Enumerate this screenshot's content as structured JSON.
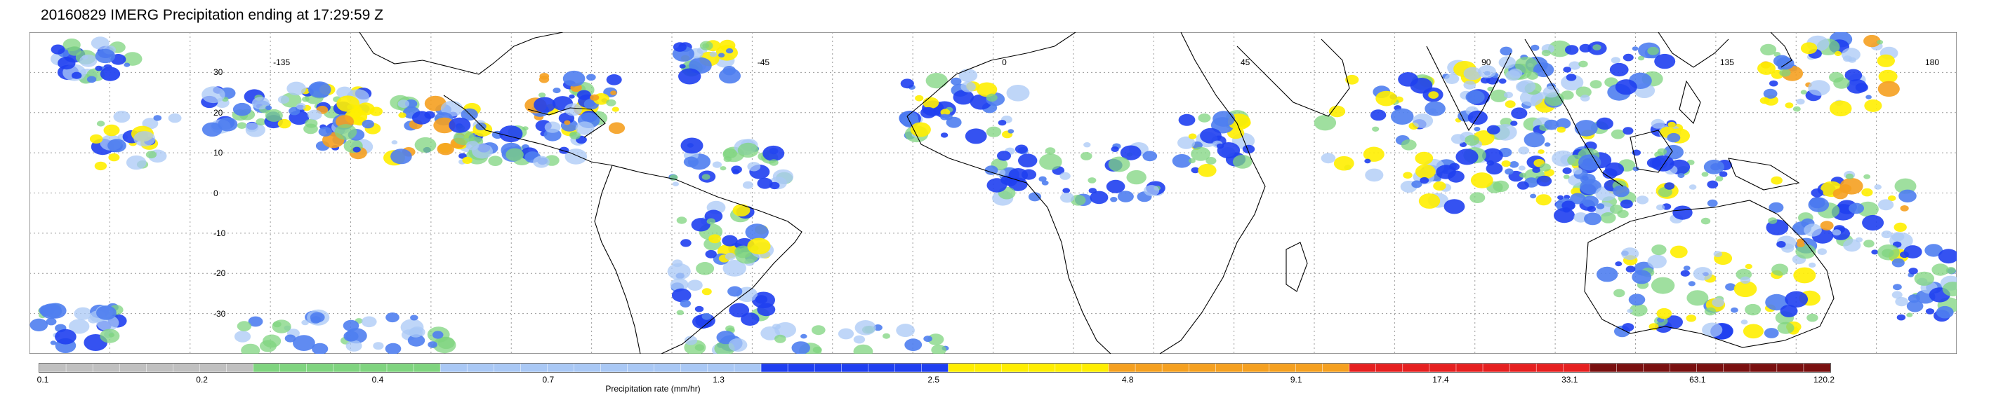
{
  "title": "20160829 IMERG Precipitation ending at 17:29:59 Z",
  "map": {
    "lat_labels": [
      "30",
      "20",
      "10",
      "0",
      "-10",
      "-20",
      "-30"
    ],
    "lon_labels": [
      "-135",
      "-45",
      "0",
      "45",
      "90",
      "135",
      "180"
    ],
    "background_color": "#ffffff",
    "graticule_color": "#9a9a9a",
    "coast_color": "#000000"
  },
  "colorbar": {
    "title": "Precipitation rate (mm/hr)",
    "tick_labels": [
      "0.1",
      "0.2",
      "0.4",
      "0.7",
      "1.3",
      "2.5",
      "4.8",
      "9.1",
      "17.4",
      "33.1",
      "63.1",
      "120.2"
    ],
    "segments": [
      {
        "color": "#c0c0c0",
        "count": 8
      },
      {
        "color": "#7fd47f",
        "count": 7
      },
      {
        "color": "#a9c8f5",
        "count": 12
      },
      {
        "color": "#1f3ff0",
        "count": 7
      },
      {
        "color": "#ffee00",
        "count": 6
      },
      {
        "color": "#f5a020",
        "count": 9
      },
      {
        "color": "#e62020",
        "count": 9
      },
      {
        "color": "#7a1010",
        "count": 9
      }
    ]
  },
  "precip_colors": [
    "#7fd47f",
    "#a9c8f5",
    "#4f7ef0",
    "#1f3ff0",
    "#ffee00",
    "#f5a020",
    "#e62020"
  ]
}
